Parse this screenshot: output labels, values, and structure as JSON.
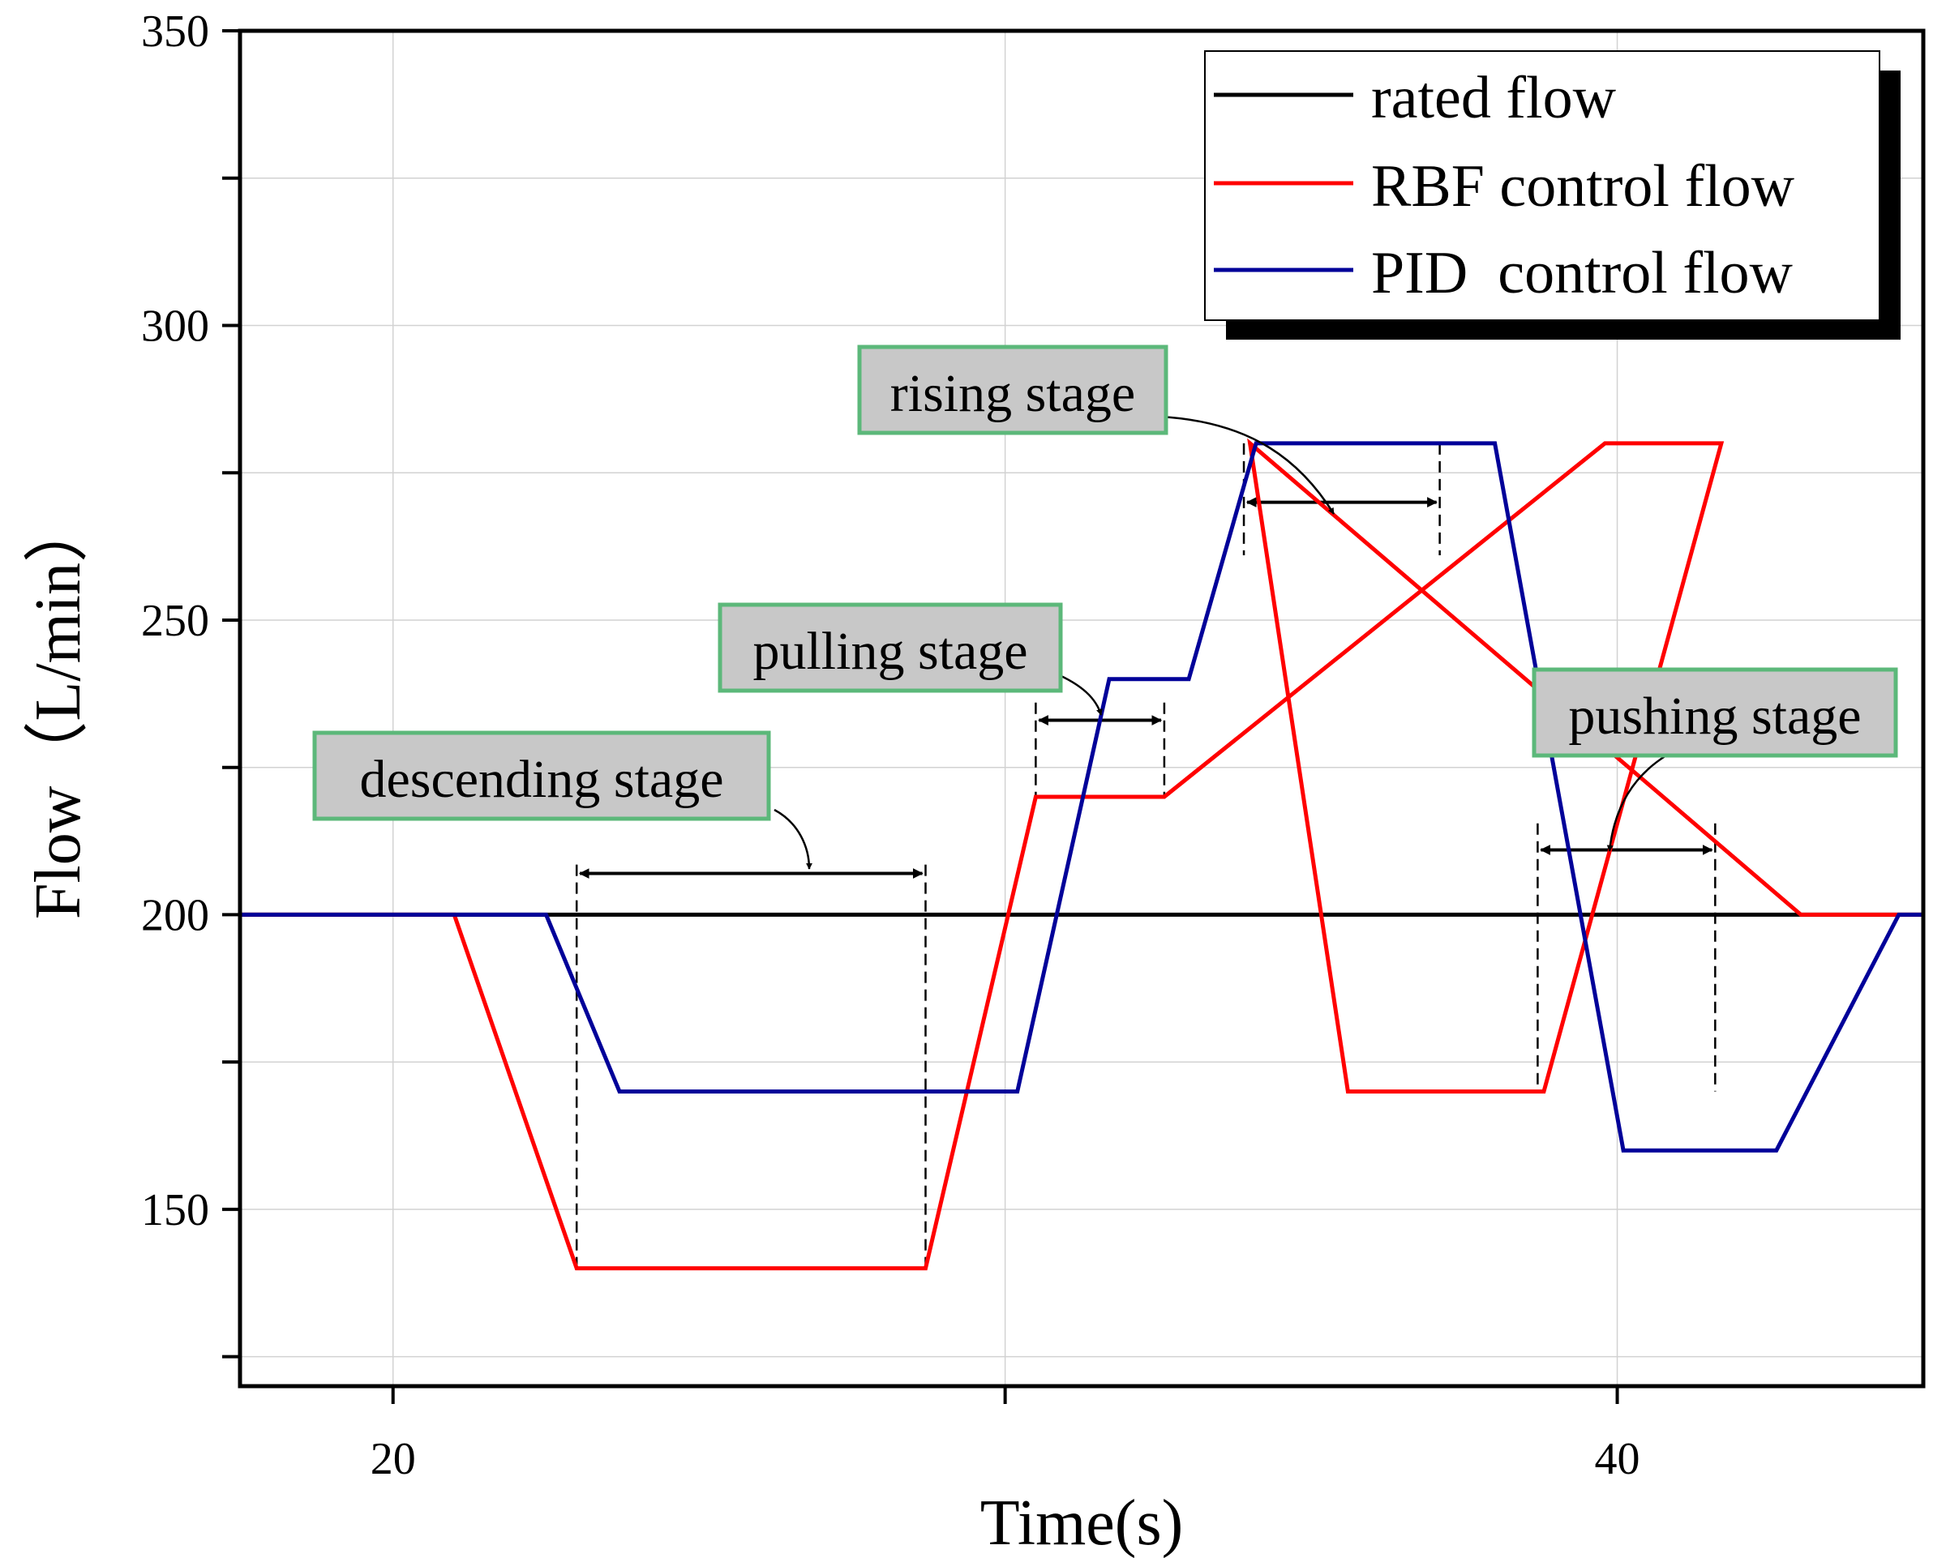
{
  "chart_data": {
    "type": "line",
    "title": "",
    "xlabel": "Time(s)",
    "ylabel": "Flow（L/min）",
    "xlim": [
      17.5,
      45
    ],
    "ylim": [
      120,
      350
    ],
    "x_ticks": [
      20,
      40
    ],
    "x_minor_ticks": [
      30
    ],
    "y_ticks": [
      150,
      200,
      250,
      300,
      350
    ],
    "y_minor_ticks": [
      125,
      175,
      225,
      275,
      325
    ],
    "grid": true,
    "legend_position": "top-right",
    "series": [
      {
        "name": "rated flow",
        "color": "#000000",
        "x": [
          17.5,
          45
        ],
        "y": [
          200,
          200
        ]
      },
      {
        "name": "RBF control flow",
        "color": "#ff0000",
        "x": [
          17.5,
          21,
          23,
          28.7,
          30.5,
          32.6,
          39.8,
          40.6,
          41.7,
          38.8,
          37.1,
          35.6,
          34.0,
          43,
          45
        ],
        "y": [
          200,
          200,
          140,
          140,
          220,
          220,
          280,
          280,
          280,
          170,
          170,
          170,
          280,
          200,
          200
        ]
      },
      {
        "name": "PID  control flow",
        "color": "#000099",
        "x": [
          17.5,
          22.5,
          23.7,
          30.2,
          31.7,
          33.0,
          34.1,
          38.0,
          40.1,
          42.6,
          44.6,
          45
        ],
        "y": [
          200,
          200,
          170,
          170,
          240,
          240,
          280,
          280,
          160,
          160,
          200,
          200
        ]
      }
    ],
    "annotations": [
      {
        "label": "descending stage",
        "x_start": 23,
        "x_end": 28.7,
        "arrow_y": 207
      },
      {
        "label": "pulling stage",
        "x_start": 30.5,
        "x_end": 32.6,
        "arrow_y": 233
      },
      {
        "label": "rising stage",
        "x_start": 33.9,
        "x_end": 37.1,
        "arrow_y": 270
      },
      {
        "label": "pushing stage",
        "x_start": 38.7,
        "x_end": 41.6,
        "arrow_y": 211
      }
    ]
  }
}
